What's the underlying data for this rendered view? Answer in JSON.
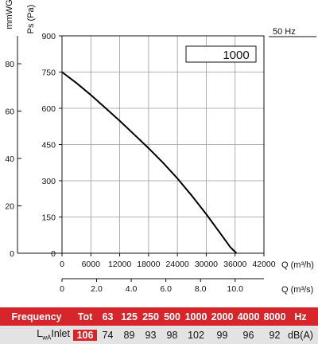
{
  "chart_data": {
    "type": "line",
    "frequency_label": "50 Hz",
    "box_label": "1000",
    "y_primary_label": "Ps (Pa)",
    "y_secondary_label": "mmWG",
    "x_primary_label": "Q (m³/h)",
    "x_secondary_label": "Q (m³/s)",
    "y_primary_ticks": [
      "0",
      "150",
      "300",
      "450",
      "600",
      "750",
      "900"
    ],
    "y_secondary_ticks": [
      "0",
      "20",
      "40",
      "60",
      "80"
    ],
    "x_primary_ticks": [
      "0",
      "6000",
      "12000",
      "18000",
      "24000",
      "30000",
      "36000",
      "42000"
    ],
    "x_secondary_ticks": [
      "0",
      "2.0",
      "4.0",
      "6.0",
      "8.0",
      "10.0"
    ],
    "xlim": [
      0,
      42000
    ],
    "ylim": [
      0,
      900
    ],
    "grid": true,
    "series": [
      {
        "x": [
          0,
          3000,
          6000,
          9000,
          12000,
          15000,
          18000,
          21000,
          24000,
          27000,
          30000,
          33000,
          35000,
          36300
        ],
        "y": [
          750,
          705,
          655,
          602,
          548,
          492,
          435,
          375,
          310,
          238,
          162,
          80,
          25,
          0
        ]
      }
    ]
  },
  "table": {
    "frequency_label": "Frequency",
    "tot_label": "Tot",
    "bands": [
      "63",
      "125",
      "250",
      "500",
      "1000",
      "2000",
      "4000",
      "8000"
    ],
    "hz_label": "Hz",
    "lw_label_main": "L",
    "lw_label_sub": "wA",
    "lw_label_rest": " Inlet",
    "tot_value": "106",
    "values": [
      "74",
      "89",
      "93",
      "98",
      "102",
      "99",
      "96",
      "92"
    ],
    "unit": "dB(A)"
  }
}
